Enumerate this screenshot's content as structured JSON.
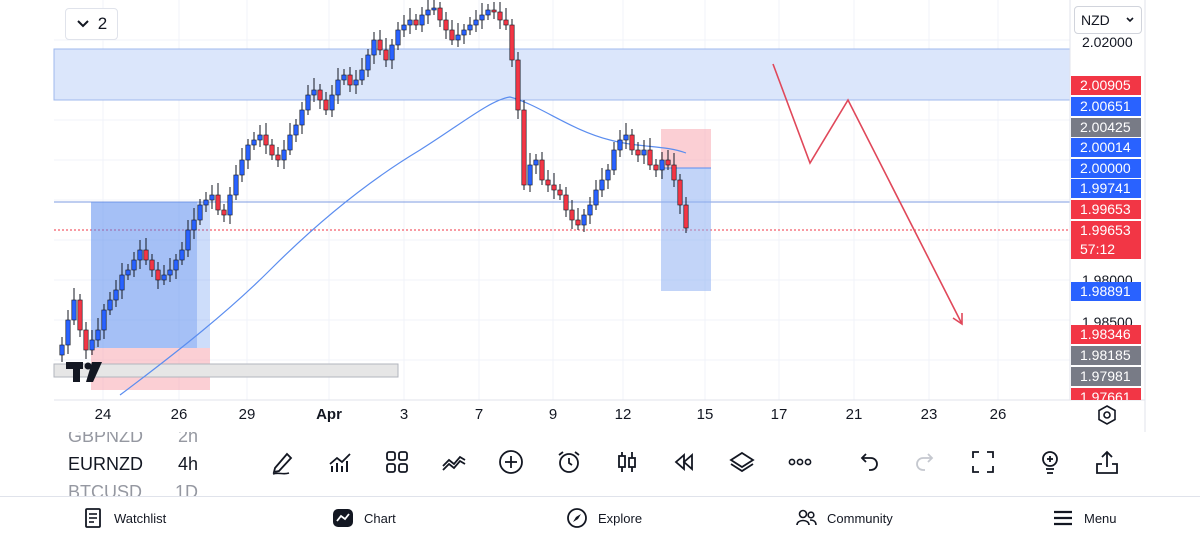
{
  "layout": {
    "count": "2"
  },
  "currency": "NZD",
  "axis": {
    "scale_labels": [
      "2.02000",
      "1.98000",
      "1.98500"
    ],
    "tags": [
      {
        "value": "2.00905",
        "color": "red"
      },
      {
        "value": "2.00651",
        "color": "blue"
      },
      {
        "value": "2.00425",
        "color": "gray"
      },
      {
        "value": "2.00014",
        "color": "blue"
      },
      {
        "value": "2.00000",
        "color": "blue"
      },
      {
        "value": "1.99741",
        "color": "blue"
      },
      {
        "value": "1.99653",
        "color": "red"
      },
      {
        "value": "1.98891",
        "color": "blue"
      },
      {
        "value": "1.98346",
        "color": "red"
      },
      {
        "value": "1.98185",
        "color": "gray"
      },
      {
        "value": "1.97981",
        "color": "gray"
      },
      {
        "value": "1.97661",
        "color": "red"
      }
    ],
    "last_price": "1.99653",
    "countdown": "57:12"
  },
  "dates": [
    "24",
    "26",
    "29",
    "Apr",
    "3",
    "7",
    "9",
    "12",
    "15",
    "17",
    "21",
    "23",
    "26"
  ],
  "symbols": [
    {
      "name": "GBPNZD",
      "tf": "2h",
      "state": "dim"
    },
    {
      "name": "EURNZD",
      "tf": "4h",
      "state": "active"
    },
    {
      "name": "BTCUSD",
      "tf": "1D",
      "state": "dim"
    }
  ],
  "toolbar": {
    "tools": [
      "pencil-icon",
      "indicators-icon",
      "templates-icon",
      "compare-icon",
      "add-icon",
      "alert-icon",
      "bar-style-icon",
      "replay-icon",
      "layers-icon",
      "more-icon",
      "undo-icon",
      "redo-icon",
      "fullscreen-icon",
      "ideas-icon",
      "share-icon"
    ]
  },
  "nav": {
    "watchlist": "Watchlist",
    "chart": "Chart",
    "explore": "Explore",
    "community": "Community",
    "menu": "Menu"
  },
  "colors": {
    "up": "#2962ff",
    "down": "#f23645",
    "ma": "#5b8def",
    "zone": "#dbe6fb"
  }
}
